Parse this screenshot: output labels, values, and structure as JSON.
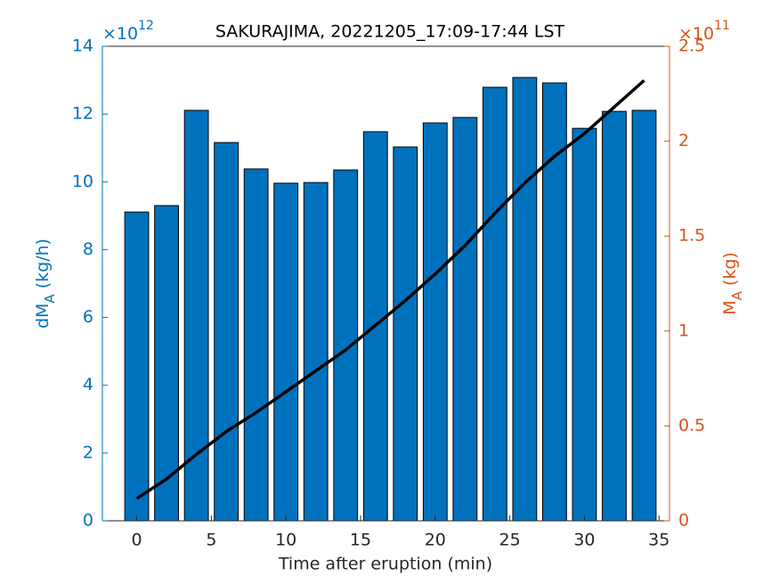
{
  "chart_data": {
    "type": "bar",
    "title": "SAKURAJIMA, 20221205_17:09-17:44 LST",
    "xlabel": "Time after eruption (min)",
    "ylabel": [
      "dM",
      "A",
      " (kg/h)"
    ],
    "y2label": [
      "M",
      "A",
      " (kg)"
    ],
    "y_multiplier": [
      "×10",
      "12"
    ],
    "y2_multiplier": [
      "×10",
      "11"
    ],
    "x": [
      0,
      2,
      4,
      6,
      8,
      10,
      12,
      14,
      16,
      18,
      20,
      22,
      24,
      26,
      28,
      30,
      32,
      34
    ],
    "series": [
      {
        "type": "bar",
        "color": "#0072BD",
        "bar_width": 1.6,
        "values": [
          9.11,
          9.3,
          12.11,
          11.16,
          10.38,
          9.96,
          9.98,
          10.35,
          11.48,
          11.03,
          11.74,
          11.9,
          12.79,
          13.08,
          12.92,
          11.58,
          12.08,
          12.11
        ]
      },
      {
        "type": "line",
        "axis": "y2",
        "color": "#000000",
        "values": [
          0.117,
          0.22,
          0.35,
          0.47,
          0.57,
          0.68,
          0.79,
          0.9,
          1.03,
          1.16,
          1.3,
          1.45,
          1.62,
          1.78,
          1.92,
          2.04,
          2.18,
          2.32
        ]
      }
    ],
    "xlim": [
      -2.3,
      35.7
    ],
    "xticks": [
      0,
      5,
      10,
      15,
      20,
      25,
      30,
      35
    ],
    "ylim": [
      0,
      14
    ],
    "yticks": [
      0,
      2,
      4,
      6,
      8,
      10,
      12,
      14
    ],
    "y2lim": [
      0,
      2.5
    ],
    "y2ticks": [
      0,
      0.5,
      1,
      1.5,
      2,
      2.5
    ],
    "y_color": "#0072BD",
    "y2_color": "#D95319"
  }
}
